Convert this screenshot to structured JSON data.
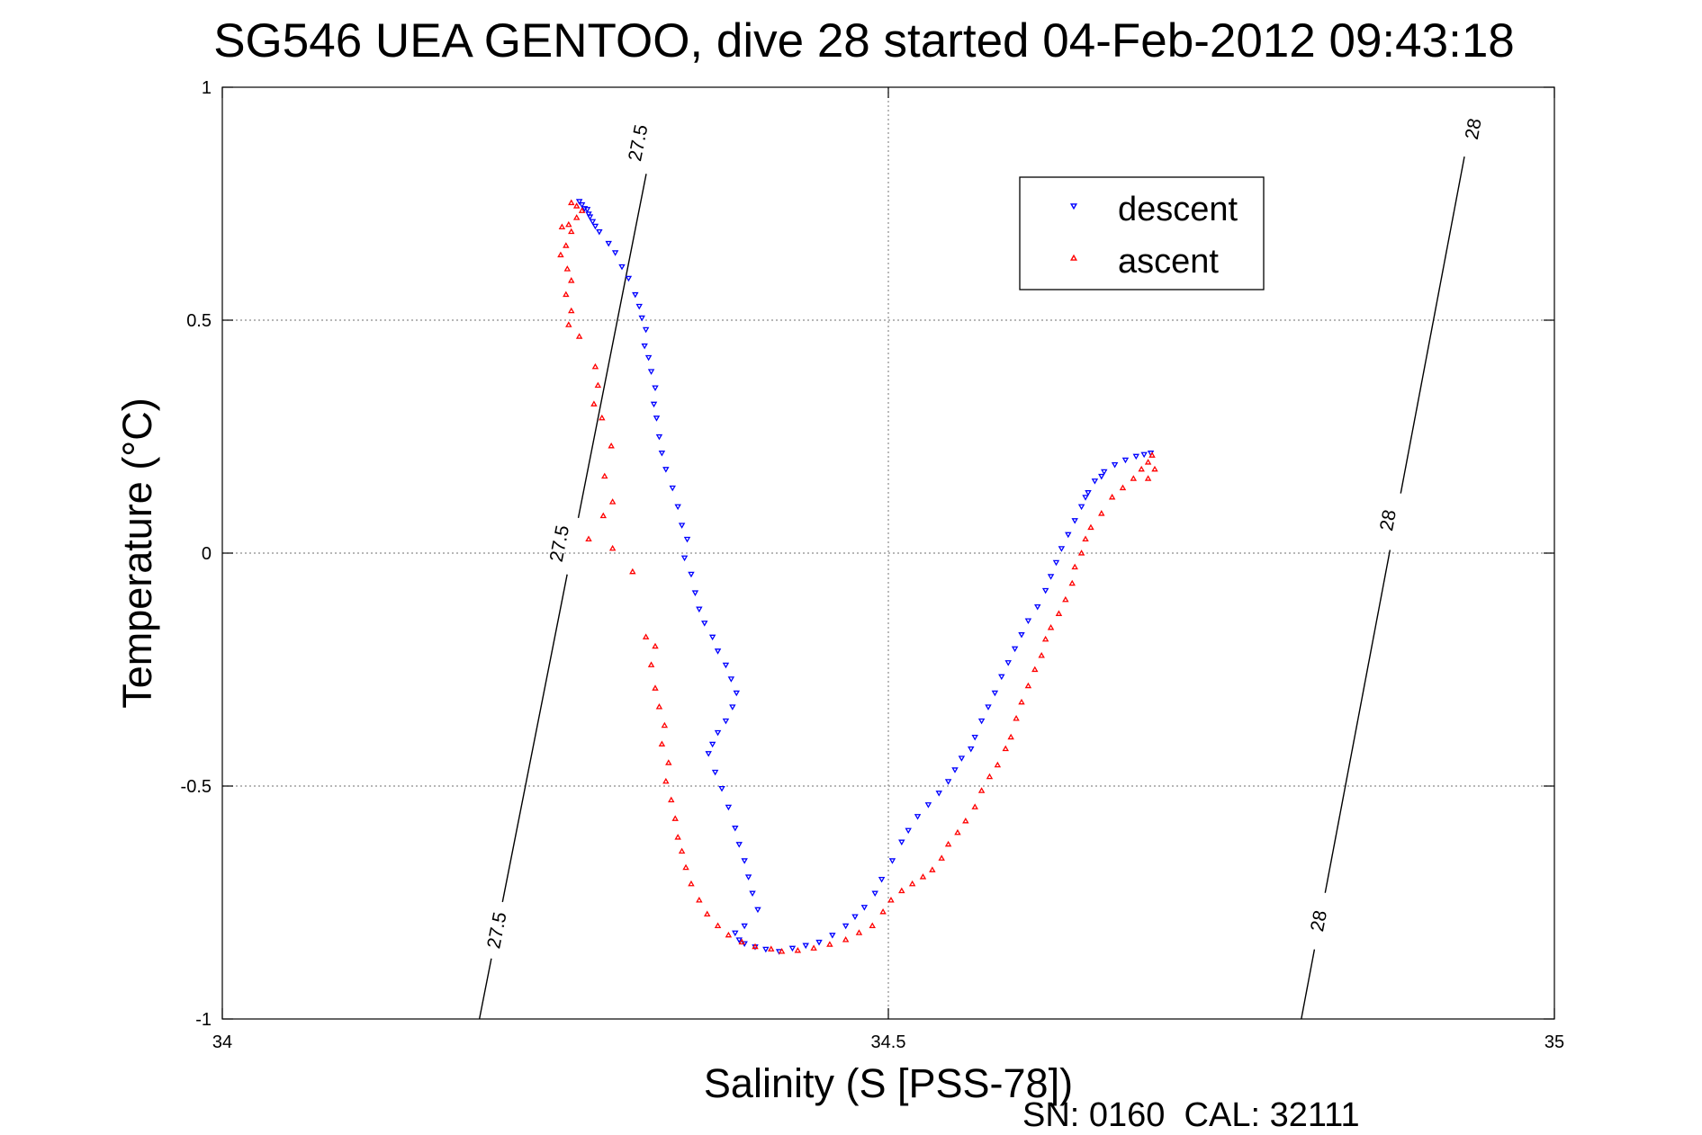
{
  "title": "SG546 UEA GENTOO, dive 28 started 04-Feb-2012 09:43:18",
  "footer": "SN: 0160  CAL: 32111",
  "colors": {
    "descent": "#0000ff",
    "ascent": "#ff0000",
    "grid": "#8c8c8c",
    "axis": "#000000"
  },
  "chart_data": {
    "type": "scatter",
    "title": "SG546 UEA GENTOO, dive 28 started 04-Feb-2012 09:43:18",
    "xlabel": "Salinity (S [PSS-78])",
    "ylabel": "Temperature (°C)",
    "xlim": [
      34,
      35
    ],
    "ylim": [
      -1,
      1
    ],
    "xticks": [
      34,
      34.5,
      35
    ],
    "xtick_labels": [
      "34",
      "34.5",
      "35"
    ],
    "yticks": [
      -1,
      -0.5,
      0,
      0.5,
      1
    ],
    "ytick_labels": [
      "-1",
      "-0.5",
      "0",
      "0.5",
      "1"
    ],
    "grid": true,
    "legend_position": "top-right",
    "legend": [
      "descent",
      "ascent"
    ],
    "density_contours": [
      {
        "label": "27.5",
        "points": [
          [
            34.193,
            -1.0
          ],
          [
            34.319,
            0.825
          ]
        ],
        "label_positions": [
          [
            34.207,
            -0.81
          ],
          [
            34.254,
            0.02
          ],
          [
            34.313,
            0.88
          ]
        ]
      },
      {
        "label": "28",
        "points": [
          [
            34.81,
            -1.0
          ],
          [
            34.937,
            0.92
          ]
        ],
        "label_positions": [
          [
            34.824,
            -0.79
          ],
          [
            34.876,
            0.07
          ],
          [
            34.94,
            0.91
          ]
        ]
      }
    ],
    "series": [
      {
        "name": "descent",
        "marker": "triangle-down",
        "points": [
          [
            34.268,
            0.755
          ],
          [
            34.27,
            0.748
          ],
          [
            34.272,
            0.74
          ],
          [
            34.274,
            0.738
          ],
          [
            34.275,
            0.728
          ],
          [
            34.276,
            0.722
          ],
          [
            34.278,
            0.712
          ],
          [
            34.28,
            0.702
          ],
          [
            34.283,
            0.69
          ],
          [
            34.29,
            0.665
          ],
          [
            34.295,
            0.645
          ],
          [
            34.3,
            0.615
          ],
          [
            34.305,
            0.59
          ],
          [
            34.31,
            0.555
          ],
          [
            34.313,
            0.53
          ],
          [
            34.315,
            0.505
          ],
          [
            34.318,
            0.48
          ],
          [
            34.317,
            0.445
          ],
          [
            34.32,
            0.42
          ],
          [
            34.322,
            0.39
          ],
          [
            34.325,
            0.355
          ],
          [
            34.324,
            0.32
          ],
          [
            34.326,
            0.29
          ],
          [
            34.328,
            0.25
          ],
          [
            34.33,
            0.215
          ],
          [
            34.333,
            0.18
          ],
          [
            34.338,
            0.14
          ],
          [
            34.342,
            0.1
          ],
          [
            34.345,
            0.06
          ],
          [
            34.349,
            0.03
          ],
          [
            34.347,
            -0.01
          ],
          [
            34.352,
            -0.045
          ],
          [
            34.355,
            -0.085
          ],
          [
            34.358,
            -0.12
          ],
          [
            34.362,
            -0.15
          ],
          [
            34.368,
            -0.18
          ],
          [
            34.372,
            -0.21
          ],
          [
            34.378,
            -0.24
          ],
          [
            34.382,
            -0.27
          ],
          [
            34.386,
            -0.3
          ],
          [
            34.383,
            -0.33
          ],
          [
            34.378,
            -0.36
          ],
          [
            34.372,
            -0.385
          ],
          [
            34.368,
            -0.41
          ],
          [
            34.365,
            -0.43
          ],
          [
            34.37,
            -0.47
          ],
          [
            34.375,
            -0.505
          ],
          [
            34.38,
            -0.545
          ],
          [
            34.385,
            -0.59
          ],
          [
            34.388,
            -0.625
          ],
          [
            34.392,
            -0.66
          ],
          [
            34.395,
            -0.695
          ],
          [
            34.398,
            -0.73
          ],
          [
            34.402,
            -0.765
          ],
          [
            34.392,
            -0.8
          ],
          [
            34.385,
            -0.815
          ],
          [
            34.388,
            -0.83
          ],
          [
            34.392,
            -0.838
          ],
          [
            34.4,
            -0.845
          ],
          [
            34.408,
            -0.85
          ],
          [
            34.418,
            -0.855
          ],
          [
            34.428,
            -0.848
          ],
          [
            34.438,
            -0.842
          ],
          [
            34.448,
            -0.835
          ],
          [
            34.458,
            -0.82
          ],
          [
            34.468,
            -0.8
          ],
          [
            34.475,
            -0.78
          ],
          [
            34.482,
            -0.76
          ],
          [
            34.49,
            -0.73
          ],
          [
            34.495,
            -0.7
          ],
          [
            34.503,
            -0.66
          ],
          [
            34.51,
            -0.62
          ],
          [
            34.515,
            -0.595
          ],
          [
            34.522,
            -0.565
          ],
          [
            34.53,
            -0.54
          ],
          [
            34.538,
            -0.515
          ],
          [
            34.545,
            -0.49
          ],
          [
            34.55,
            -0.465
          ],
          [
            34.555,
            -0.44
          ],
          [
            34.562,
            -0.42
          ],
          [
            34.565,
            -0.395
          ],
          [
            34.57,
            -0.36
          ],
          [
            34.575,
            -0.33
          ],
          [
            34.58,
            -0.3
          ],
          [
            34.585,
            -0.265
          ],
          [
            34.59,
            -0.235
          ],
          [
            34.595,
            -0.205
          ],
          [
            34.6,
            -0.175
          ],
          [
            34.605,
            -0.145
          ],
          [
            34.612,
            -0.115
          ],
          [
            34.618,
            -0.08
          ],
          [
            34.622,
            -0.05
          ],
          [
            34.626,
            -0.02
          ],
          [
            34.63,
            0.01
          ],
          [
            34.635,
            0.04
          ],
          [
            34.64,
            0.07
          ],
          [
            34.645,
            0.1
          ],
          [
            34.65,
            0.13
          ],
          [
            34.655,
            0.155
          ],
          [
            34.662,
            0.175
          ],
          [
            34.67,
            0.19
          ],
          [
            34.678,
            0.2
          ],
          [
            34.686,
            0.208
          ],
          [
            34.692,
            0.212
          ],
          [
            34.697,
            0.215
          ],
          [
            34.66,
            0.165
          ],
          [
            34.648,
            0.12
          ]
        ]
      },
      {
        "name": "ascent",
        "marker": "triangle-up",
        "points": [
          [
            34.262,
            0.752
          ],
          [
            34.266,
            0.745
          ],
          [
            34.27,
            0.735
          ],
          [
            34.266,
            0.72
          ],
          [
            34.26,
            0.705
          ],
          [
            34.255,
            0.7
          ],
          [
            34.262,
            0.69
          ],
          [
            34.258,
            0.66
          ],
          [
            34.254,
            0.64
          ],
          [
            34.259,
            0.61
          ],
          [
            34.262,
            0.585
          ],
          [
            34.258,
            0.555
          ],
          [
            34.262,
            0.52
          ],
          [
            34.26,
            0.49
          ],
          [
            34.268,
            0.465
          ],
          [
            34.28,
            0.4
          ],
          [
            34.282,
            0.36
          ],
          [
            34.279,
            0.32
          ],
          [
            34.285,
            0.29
          ],
          [
            34.292,
            0.23
          ],
          [
            34.287,
            0.165
          ],
          [
            34.293,
            0.11
          ],
          [
            34.286,
            0.08
          ],
          [
            34.275,
            0.03
          ],
          [
            34.293,
            0.01
          ],
          [
            34.308,
            -0.04
          ],
          [
            34.318,
            -0.18
          ],
          [
            34.325,
            -0.2
          ],
          [
            34.322,
            -0.24
          ],
          [
            34.325,
            -0.29
          ],
          [
            34.328,
            -0.33
          ],
          [
            34.332,
            -0.37
          ],
          [
            34.33,
            -0.41
          ],
          [
            34.335,
            -0.45
          ],
          [
            34.333,
            -0.49
          ],
          [
            34.337,
            -0.53
          ],
          [
            34.34,
            -0.57
          ],
          [
            34.342,
            -0.61
          ],
          [
            34.345,
            -0.64
          ],
          [
            34.348,
            -0.675
          ],
          [
            34.352,
            -0.71
          ],
          [
            34.358,
            -0.745
          ],
          [
            34.364,
            -0.775
          ],
          [
            34.372,
            -0.8
          ],
          [
            34.38,
            -0.82
          ],
          [
            34.39,
            -0.835
          ],
          [
            34.4,
            -0.845
          ],
          [
            34.412,
            -0.85
          ],
          [
            34.42,
            -0.855
          ],
          [
            34.432,
            -0.853
          ],
          [
            34.444,
            -0.848
          ],
          [
            34.456,
            -0.84
          ],
          [
            34.468,
            -0.83
          ],
          [
            34.478,
            -0.815
          ],
          [
            34.488,
            -0.8
          ],
          [
            34.496,
            -0.77
          ],
          [
            34.502,
            -0.745
          ],
          [
            34.51,
            -0.725
          ],
          [
            34.518,
            -0.71
          ],
          [
            34.526,
            -0.695
          ],
          [
            34.533,
            -0.68
          ],
          [
            34.54,
            -0.655
          ],
          [
            34.545,
            -0.625
          ],
          [
            34.552,
            -0.6
          ],
          [
            34.558,
            -0.575
          ],
          [
            34.565,
            -0.545
          ],
          [
            34.57,
            -0.51
          ],
          [
            34.576,
            -0.48
          ],
          [
            34.582,
            -0.455
          ],
          [
            34.588,
            -0.42
          ],
          [
            34.592,
            -0.395
          ],
          [
            34.596,
            -0.355
          ],
          [
            34.6,
            -0.32
          ],
          [
            34.605,
            -0.285
          ],
          [
            34.61,
            -0.25
          ],
          [
            34.615,
            -0.22
          ],
          [
            34.618,
            -0.185
          ],
          [
            34.622,
            -0.16
          ],
          [
            34.628,
            -0.13
          ],
          [
            34.633,
            -0.1
          ],
          [
            34.638,
            -0.065
          ],
          [
            34.64,
            -0.03
          ],
          [
            34.645,
            0.0
          ],
          [
            34.648,
            0.03
          ],
          [
            34.652,
            0.055
          ],
          [
            34.66,
            0.085
          ],
          [
            34.668,
            0.12
          ],
          [
            34.676,
            0.14
          ],
          [
            34.684,
            0.16
          ],
          [
            34.69,
            0.18
          ],
          [
            34.695,
            0.195
          ],
          [
            34.698,
            0.21
          ],
          [
            34.7,
            0.18
          ],
          [
            34.695,
            0.16
          ]
        ]
      }
    ]
  }
}
